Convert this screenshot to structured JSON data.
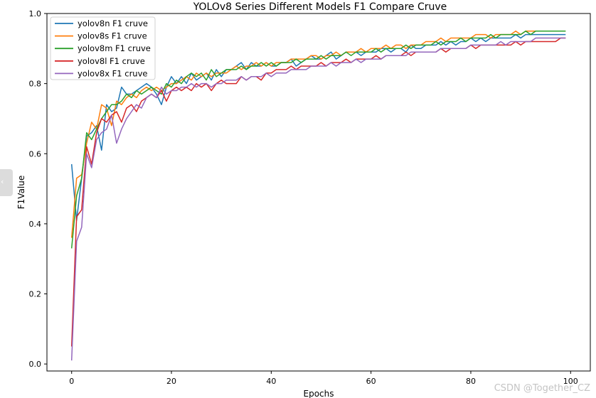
{
  "chart_data": {
    "type": "line",
    "title": "YOLOv8 Series Different Models F1 Compare Cruve",
    "xlabel": "Epochs",
    "ylabel": "F1Value",
    "xlim": [
      -4.95,
      103.95
    ],
    "ylim": [
      -0.02,
      1.0
    ],
    "xticks": [
      0,
      20,
      40,
      60,
      80,
      100
    ],
    "yticks": [
      0.0,
      0.2,
      0.4,
      0.6,
      0.8,
      1.0
    ],
    "ytick_labels": [
      "0.0",
      "0.2",
      "0.4",
      "0.6",
      "0.8",
      "1.0"
    ],
    "legend_position": "upper-left",
    "grid": false,
    "series": [
      {
        "name": "yolov8n F1 cruve",
        "color": "#1f77b4",
        "values": [
          0.57,
          0.41,
          0.53,
          0.65,
          0.66,
          0.68,
          0.61,
          0.74,
          0.72,
          0.73,
          0.79,
          0.77,
          0.77,
          0.78,
          0.79,
          0.8,
          0.79,
          0.77,
          0.74,
          0.79,
          0.82,
          0.8,
          0.82,
          0.8,
          0.83,
          0.81,
          0.82,
          0.83,
          0.81,
          0.84,
          0.82,
          0.84,
          0.84,
          0.85,
          0.86,
          0.84,
          0.86,
          0.85,
          0.85,
          0.86,
          0.85,
          0.85,
          0.86,
          0.86,
          0.87,
          0.85,
          0.86,
          0.87,
          0.88,
          0.87,
          0.87,
          0.88,
          0.89,
          0.87,
          0.88,
          0.89,
          0.89,
          0.89,
          0.88,
          0.89,
          0.89,
          0.89,
          0.9,
          0.9,
          0.89,
          0.9,
          0.9,
          0.89,
          0.91,
          0.9,
          0.9,
          0.91,
          0.91,
          0.91,
          0.92,
          0.91,
          0.92,
          0.91,
          0.92,
          0.92,
          0.93,
          0.92,
          0.93,
          0.92,
          0.93,
          0.93,
          0.93,
          0.93,
          0.93,
          0.94,
          0.93,
          0.94,
          0.94,
          0.94,
          0.94,
          0.94,
          0.94,
          0.94,
          0.94,
          0.94
        ]
      },
      {
        "name": "yolov8s F1 cruve",
        "color": "#ff7f0e",
        "values": [
          0.36,
          0.53,
          0.54,
          0.63,
          0.69,
          0.67,
          0.74,
          0.73,
          0.68,
          0.75,
          0.74,
          0.76,
          0.77,
          0.76,
          0.78,
          0.79,
          0.78,
          0.79,
          0.78,
          0.79,
          0.8,
          0.8,
          0.81,
          0.82,
          0.81,
          0.83,
          0.82,
          0.83,
          0.82,
          0.83,
          0.83,
          0.83,
          0.84,
          0.85,
          0.84,
          0.85,
          0.85,
          0.86,
          0.85,
          0.86,
          0.85,
          0.86,
          0.86,
          0.86,
          0.87,
          0.87,
          0.87,
          0.87,
          0.88,
          0.88,
          0.87,
          0.88,
          0.88,
          0.89,
          0.88,
          0.89,
          0.89,
          0.89,
          0.9,
          0.89,
          0.9,
          0.9,
          0.9,
          0.91,
          0.9,
          0.91,
          0.91,
          0.9,
          0.91,
          0.91,
          0.91,
          0.92,
          0.92,
          0.92,
          0.93,
          0.92,
          0.93,
          0.93,
          0.93,
          0.93,
          0.93,
          0.94,
          0.94,
          0.94,
          0.93,
          0.94,
          0.94,
          0.94,
          0.94,
          0.95,
          0.94,
          0.95,
          0.95,
          0.95,
          0.95,
          0.95,
          0.95,
          0.95,
          0.95,
          0.95
        ]
      },
      {
        "name": "yolov8m F1 cruve",
        "color": "#2ca02c",
        "values": [
          0.33,
          0.48,
          0.53,
          0.66,
          0.64,
          0.67,
          0.7,
          0.72,
          0.74,
          0.74,
          0.75,
          0.77,
          0.76,
          0.78,
          0.77,
          0.78,
          0.79,
          0.78,
          0.77,
          0.8,
          0.79,
          0.81,
          0.8,
          0.82,
          0.83,
          0.82,
          0.83,
          0.81,
          0.84,
          0.82,
          0.83,
          0.84,
          0.84,
          0.84,
          0.85,
          0.84,
          0.85,
          0.85,
          0.86,
          0.85,
          0.86,
          0.85,
          0.86,
          0.86,
          0.86,
          0.87,
          0.86,
          0.87,
          0.87,
          0.87,
          0.88,
          0.87,
          0.88,
          0.88,
          0.88,
          0.89,
          0.88,
          0.89,
          0.89,
          0.89,
          0.89,
          0.9,
          0.89,
          0.9,
          0.9,
          0.9,
          0.9,
          0.91,
          0.9,
          0.91,
          0.91,
          0.91,
          0.91,
          0.92,
          0.91,
          0.92,
          0.92,
          0.92,
          0.93,
          0.92,
          0.93,
          0.93,
          0.93,
          0.93,
          0.94,
          0.93,
          0.94,
          0.94,
          0.94,
          0.94,
          0.94,
          0.95,
          0.94,
          0.95,
          0.95,
          0.95,
          0.95,
          0.95,
          0.95,
          0.95
        ]
      },
      {
        "name": "yolov8l F1 cruve",
        "color": "#d62728",
        "values": [
          0.05,
          0.42,
          0.44,
          0.62,
          0.57,
          0.66,
          0.7,
          0.69,
          0.71,
          0.72,
          0.69,
          0.73,
          0.74,
          0.72,
          0.75,
          0.76,
          0.77,
          0.76,
          0.78,
          0.75,
          0.78,
          0.79,
          0.78,
          0.79,
          0.78,
          0.8,
          0.79,
          0.8,
          0.78,
          0.8,
          0.81,
          0.8,
          0.8,
          0.8,
          0.82,
          0.81,
          0.82,
          0.82,
          0.81,
          0.83,
          0.83,
          0.84,
          0.84,
          0.84,
          0.85,
          0.84,
          0.85,
          0.85,
          0.85,
          0.85,
          0.86,
          0.85,
          0.86,
          0.86,
          0.86,
          0.87,
          0.86,
          0.87,
          0.87,
          0.87,
          0.87,
          0.88,
          0.87,
          0.88,
          0.88,
          0.88,
          0.88,
          0.89,
          0.88,
          0.89,
          0.89,
          0.89,
          0.89,
          0.89,
          0.9,
          0.89,
          0.9,
          0.9,
          0.9,
          0.9,
          0.91,
          0.9,
          0.91,
          0.91,
          0.91,
          0.91,
          0.91,
          0.91,
          0.91,
          0.92,
          0.91,
          0.92,
          0.92,
          0.92,
          0.92,
          0.92,
          0.92,
          0.92,
          0.93,
          0.93
        ]
      },
      {
        "name": "yolov8x F1 cruve",
        "color": "#9467bd",
        "values": [
          0.01,
          0.35,
          0.39,
          0.6,
          0.56,
          0.64,
          0.66,
          0.67,
          0.71,
          0.63,
          0.67,
          0.7,
          0.72,
          0.74,
          0.73,
          0.76,
          0.77,
          0.76,
          0.79,
          0.77,
          0.78,
          0.78,
          0.79,
          0.79,
          0.8,
          0.79,
          0.8,
          0.8,
          0.79,
          0.8,
          0.8,
          0.81,
          0.81,
          0.81,
          0.82,
          0.81,
          0.82,
          0.82,
          0.82,
          0.83,
          0.82,
          0.83,
          0.83,
          0.83,
          0.84,
          0.84,
          0.84,
          0.84,
          0.85,
          0.85,
          0.85,
          0.85,
          0.86,
          0.85,
          0.86,
          0.86,
          0.86,
          0.87,
          0.86,
          0.87,
          0.87,
          0.87,
          0.87,
          0.88,
          0.88,
          0.88,
          0.88,
          0.88,
          0.89,
          0.89,
          0.89,
          0.89,
          0.89,
          0.89,
          0.9,
          0.9,
          0.9,
          0.9,
          0.9,
          0.9,
          0.91,
          0.91,
          0.91,
          0.91,
          0.91,
          0.91,
          0.92,
          0.91,
          0.92,
          0.92,
          0.92,
          0.92,
          0.92,
          0.93,
          0.93,
          0.93,
          0.93,
          0.93,
          0.93,
          0.93
        ]
      }
    ]
  },
  "watermark": "CSDN @Together_CZ"
}
